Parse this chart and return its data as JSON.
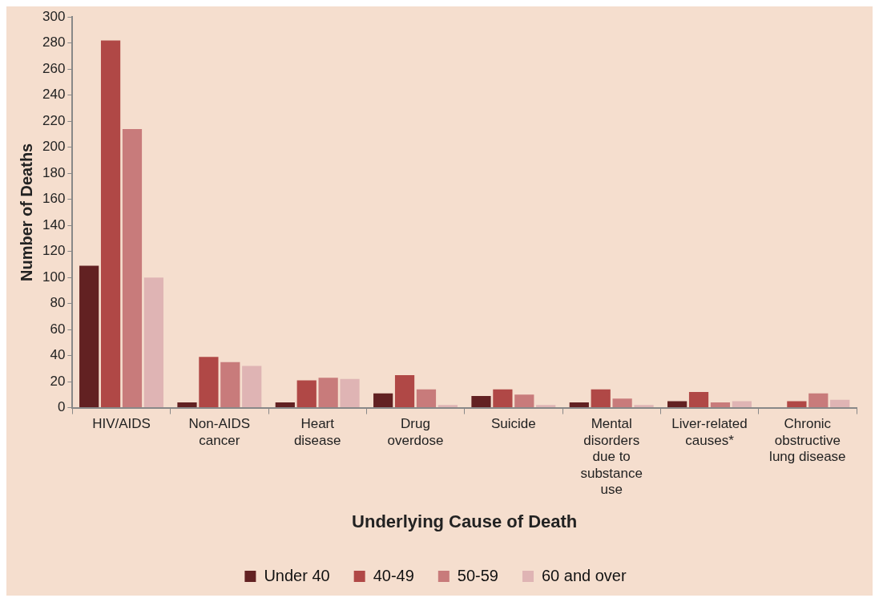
{
  "chart_data": {
    "type": "bar",
    "xlabel": "Underlying Cause of Death",
    "ylabel": "Number of Deaths",
    "categories": [
      "HIV/AIDS",
      "Non-AIDS cancer",
      "Heart disease",
      "Drug overdose",
      "Suicide",
      "Mental disorders due to substance use",
      "Liver-related causes*",
      "Chronic obstructive lung disease"
    ],
    "series": [
      {
        "name": "Under 40",
        "color": "#622122",
        "values": [
          109,
          4,
          4,
          11,
          9,
          4,
          5,
          0
        ]
      },
      {
        "name": "40-49",
        "color": "#b04846",
        "values": [
          282,
          39,
          21,
          25,
          14,
          14,
          12,
          5
        ]
      },
      {
        "name": "50-59",
        "color": "#c87b7b",
        "values": [
          214,
          35,
          23,
          14,
          10,
          7,
          4,
          11
        ]
      },
      {
        "name": "60 and over",
        "color": "#dfb4b4",
        "values": [
          100,
          32,
          22,
          2,
          2,
          2,
          5,
          6
        ]
      }
    ],
    "ylim": [
      0,
      300
    ],
    "yticks": [
      0,
      20,
      40,
      60,
      80,
      100,
      120,
      140,
      160,
      180,
      200,
      220,
      240,
      260,
      280,
      300
    ],
    "grid": false,
    "legend": "bottom"
  }
}
